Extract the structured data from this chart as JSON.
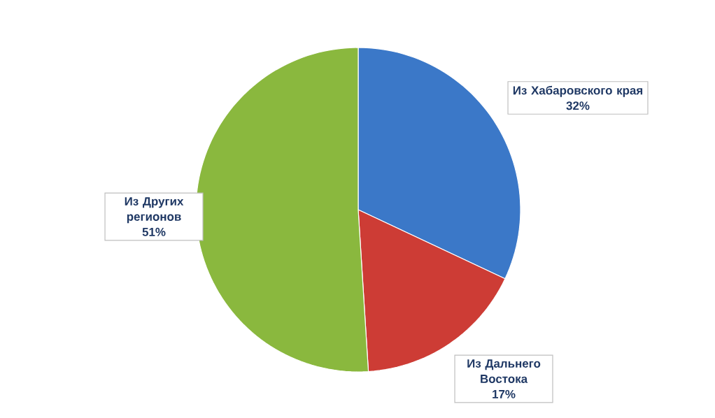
{
  "chart_data": {
    "type": "pie",
    "categories": [
      "Из Хабаровского края",
      "Из Дальнего Востока",
      "Из Других регионов"
    ],
    "values": [
      32,
      17,
      51
    ],
    "value_labels": [
      "32%",
      "17%",
      "51%"
    ],
    "colors": [
      "#3b78c8",
      "#cd3c35",
      "#8ab83e"
    ]
  }
}
